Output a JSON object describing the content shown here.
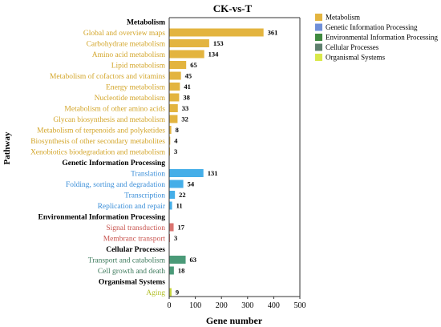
{
  "chart_data": {
    "type": "bar",
    "orientation": "horizontal",
    "title": "CK-vs-T",
    "xlabel": "Gene number",
    "ylabel": "Pathway",
    "xlim": [
      0,
      500
    ],
    "xticks": [
      "0",
      "100",
      "200",
      "300",
      "400",
      "500"
    ],
    "grid": false,
    "legend_position": "top-right",
    "colors": {
      "Metabolism": "#e3b43f",
      "Genetic Information Processing": "#45aee8",
      "Environmental Information Processing": "#d9736f",
      "Cellular Processes": "#4a9a78",
      "Organismal Systems": "#c7d63c"
    },
    "label_colors": {
      "Metabolism": "#d3a529",
      "Genetic Information Processing": "#3a8ed8",
      "Environmental Information Processing": "#c8544f",
      "Cellular Processes": "#3d7a5c",
      "Organismal Systems": "#b3c02b"
    },
    "legend": [
      {
        "name": "Metabolism",
        "color": "#e3b43f"
      },
      {
        "name": "Genetic Information Processing",
        "color": "#6f8fd8"
      },
      {
        "name": "Environmental Information Processing",
        "color": "#3f8a3f"
      },
      {
        "name": "Cellular Processes",
        "color": "#5e7f6e"
      },
      {
        "name": "Organismal Systems",
        "color": "#d9e84a"
      }
    ],
    "groups": [
      {
        "name": "Metabolism",
        "items": [
          {
            "label": "Global and overview maps",
            "value": 361
          },
          {
            "label": "Carbohydrate metabolism",
            "value": 153
          },
          {
            "label": "Amino acid metabolism",
            "value": 134
          },
          {
            "label": "Lipid metabolism",
            "value": 65
          },
          {
            "label": "Metabolism of cofactors and vitamins",
            "value": 45
          },
          {
            "label": "Energy metabolism",
            "value": 41
          },
          {
            "label": "Nucleotide metabolism",
            "value": 38
          },
          {
            "label": "Metabolism of other amino acids",
            "value": 33
          },
          {
            "label": "Glycan biosynthesis and metabolism",
            "value": 32
          },
          {
            "label": "Metabolism of terpenoids and polyketides",
            "value": 8
          },
          {
            "label": "Biosynthesis of other secondary metabolites",
            "value": 4
          },
          {
            "label": "Xenobiotics biodegradation and metabolism",
            "value": 3
          }
        ]
      },
      {
        "name": "Genetic Information Processing",
        "items": [
          {
            "label": "Translation",
            "value": 131
          },
          {
            "label": "Folding, sorting and degradation",
            "value": 54
          },
          {
            "label": "Transcription",
            "value": 22
          },
          {
            "label": "Replication and repair",
            "value": 11
          }
        ]
      },
      {
        "name": "Environmental Information Processing",
        "items": [
          {
            "label": "Signal transduction",
            "value": 17
          },
          {
            "label": "Membranc transport",
            "value": 3
          }
        ]
      },
      {
        "name": "Cellular Processes",
        "items": [
          {
            "label": "Transport and catabolism",
            "value": 63
          },
          {
            "label": "Cell growth and death",
            "value": 18
          }
        ]
      },
      {
        "name": "Organismal Systems",
        "items": [
          {
            "label": "Aging",
            "value": 9
          }
        ]
      }
    ]
  }
}
